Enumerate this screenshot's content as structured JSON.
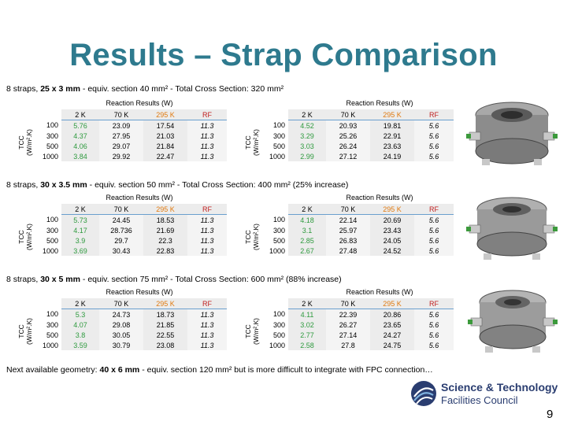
{
  "title": "Results – Strap Comparison",
  "sections": [
    {
      "prefix": "8 straps, ",
      "size": "25 x 3 mm",
      "suffix": " - equiv. section 40 mm² - Total Cross Section: 320 mm²"
    },
    {
      "prefix": "8 straps, ",
      "size": "30 x 3.5 mm",
      "suffix": " - equiv. section 50 mm² - Total Cross Section: 400 mm² (25% increase)"
    },
    {
      "prefix": "8 straps, ",
      "size": "30 x 5 mm",
      "suffix": " - equiv. section 75 mm² - Total Cross Section: 600 mm² (88% increase)"
    }
  ],
  "tcc_label": "TCC",
  "tcc_units": "(W/m².K)",
  "reaction_label": "Reaction Results (W)",
  "columns": [
    "2 K",
    "70 K",
    "295 K",
    "RF"
  ],
  "tables": {
    "s1_left": [
      [
        "100",
        "5.76",
        "23.09",
        "17.54",
        "11.3"
      ],
      [
        "300",
        "4.37",
        "27.95",
        "21.03",
        "11.3"
      ],
      [
        "500",
        "4.06",
        "29.07",
        "21.84",
        "11.3"
      ],
      [
        "1000",
        "3.84",
        "29.92",
        "22.47",
        "11.3"
      ]
    ],
    "s1_right": [
      [
        "100",
        "4.52",
        "20.93",
        "19.81",
        "5.6"
      ],
      [
        "300",
        "3.29",
        "25.26",
        "22.91",
        "5.6"
      ],
      [
        "500",
        "3.03",
        "26.24",
        "23.63",
        "5.6"
      ],
      [
        "1000",
        "2.99",
        "27.12",
        "24.19",
        "5.6"
      ]
    ],
    "s2_left": [
      [
        "100",
        "5.73",
        "24.45",
        "18.53",
        "11.3"
      ],
      [
        "300",
        "4.17",
        "28.736",
        "21.69",
        "11.3"
      ],
      [
        "500",
        "3.9",
        "29.7",
        "22.3",
        "11.3"
      ],
      [
        "1000",
        "3.69",
        "30.43",
        "22.83",
        "11.3"
      ]
    ],
    "s2_right": [
      [
        "100",
        "4.18",
        "22.14",
        "20.69",
        "5.6"
      ],
      [
        "300",
        "3.1",
        "25.97",
        "23.43",
        "5.6"
      ],
      [
        "500",
        "2.85",
        "26.83",
        "24.05",
        "5.6"
      ],
      [
        "1000",
        "2.67",
        "27.48",
        "24.52",
        "5.6"
      ]
    ],
    "s3_left": [
      [
        "100",
        "5.3",
        "24.73",
        "18.73",
        "11.3"
      ],
      [
        "300",
        "4.07",
        "29.08",
        "21.85",
        "11.3"
      ],
      [
        "500",
        "3.8",
        "30.05",
        "22.55",
        "11.3"
      ],
      [
        "1000",
        "3.59",
        "30.79",
        "23.08",
        "11.3"
      ]
    ],
    "s3_right": [
      [
        "100",
        "4.11",
        "22.39",
        "20.86",
        "5.6"
      ],
      [
        "300",
        "3.02",
        "26.27",
        "23.65",
        "5.6"
      ],
      [
        "500",
        "2.77",
        "27.14",
        "24.27",
        "5.6"
      ],
      [
        "1000",
        "2.58",
        "27.8",
        "24.75",
        "5.6"
      ]
    ]
  },
  "note": {
    "prefix": "Next available geometry: ",
    "size": "40 x 6 mm",
    "suffix": " - equiv. section 120 mm² but is more difficult to integrate with FPC connection…"
  },
  "logo": {
    "line1": "Science & Technology",
    "line2": "Facilities Council",
    "color": "#2a3d70"
  },
  "page_number": "9",
  "colors": {
    "title": "#2e7a8e",
    "green": "#2e9a3e",
    "red": "#c02020",
    "orange": "#e07a10"
  }
}
